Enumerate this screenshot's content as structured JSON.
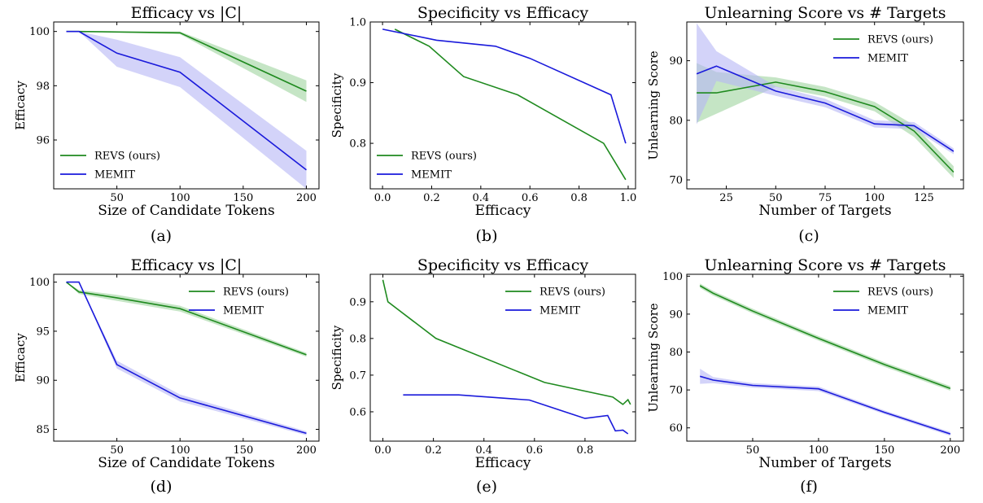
{
  "colors": {
    "revs": "#1f8a1f",
    "memit": "#1a1adb",
    "revs_band": "#9fd49f",
    "memit_band": "#b6b6f5"
  },
  "chart_data": [
    {
      "panel": "(a)",
      "type": "line",
      "title": "Efficacy vs |C|",
      "xlabel": "Size of Candidate Tokens",
      "ylabel": "Efficacy",
      "xlim": [
        0,
        210
      ],
      "ylim": [
        94.2,
        100.35
      ],
      "xticks": [
        50,
        100,
        150,
        200
      ],
      "yticks": [
        96,
        98,
        100
      ],
      "legend_loc": "lower-left",
      "series": [
        {
          "name": "REVS (ours)",
          "color": "#1f8a1f",
          "x": [
            10,
            20,
            100,
            200
          ],
          "y": [
            100,
            100,
            99.95,
            97.8
          ],
          "err": [
            0,
            0,
            0.05,
            0.4
          ]
        },
        {
          "name": "MEMIT",
          "color": "#1a1adb",
          "x": [
            10,
            20,
            50,
            100,
            200
          ],
          "y": [
            100,
            100,
            99.2,
            98.5,
            94.9
          ],
          "err": [
            0,
            0,
            0.5,
            0.55,
            0.7
          ]
        }
      ]
    },
    {
      "panel": "(b)",
      "type": "line",
      "title": "Specificity vs Efficacy",
      "xlabel": "Efficacy",
      "ylabel": "Specificity",
      "xlim": [
        -0.05,
        1.03
      ],
      "ylim": [
        0.725,
        1.0
      ],
      "xticks": [
        0.0,
        0.2,
        0.4,
        0.6,
        0.8,
        1.0
      ],
      "yticks": [
        0.8,
        0.9,
        1.0
      ],
      "legend_loc": "lower-left",
      "series": [
        {
          "name": "REVS (ours)",
          "color": "#1f8a1f",
          "x": [
            0.05,
            0.19,
            0.33,
            0.55,
            0.9,
            0.99
          ],
          "y": [
            0.988,
            0.96,
            0.91,
            0.88,
            0.8,
            0.74
          ]
        },
        {
          "name": "MEMIT",
          "color": "#1a1adb",
          "x": [
            0.0,
            0.22,
            0.46,
            0.6,
            0.93,
            0.99
          ],
          "y": [
            0.988,
            0.97,
            0.96,
            0.94,
            0.88,
            0.8
          ]
        }
      ]
    },
    {
      "panel": "(c)",
      "type": "line",
      "title": "Unlearning Score vs # Targets",
      "xlabel": "Number of Targets",
      "ylabel": "Unlearning Score",
      "xlim": [
        5,
        145
      ],
      "ylim": [
        68.5,
        96.5
      ],
      "xticks": [
        25,
        50,
        75,
        100,
        125
      ],
      "yticks": [
        70,
        80,
        90
      ],
      "legend_loc": "upper-right",
      "series": [
        {
          "name": "REVS (ours)",
          "color": "#1f8a1f",
          "x": [
            10,
            20,
            50,
            75,
            100,
            120,
            140
          ],
          "y": [
            84.6,
            84.6,
            86.4,
            84.8,
            82.3,
            78.2,
            71.3
          ],
          "err": [
            5,
            3.5,
            0.8,
            0.8,
            0.8,
            1,
            1
          ]
        },
        {
          "name": "MEMIT",
          "color": "#1a1adb",
          "x": [
            10,
            20,
            50,
            75,
            100,
            120,
            140
          ],
          "y": [
            87.8,
            89.1,
            84.9,
            82.9,
            79.4,
            79.1,
            74.8
          ],
          "err": [
            8.5,
            2.5,
            0.8,
            0.7,
            0.6,
            0.6,
            0.5
          ]
        }
      ]
    },
    {
      "panel": "(d)",
      "type": "line",
      "title": "Efficacy vs |C|",
      "xlabel": "Size of Candidate Tokens",
      "ylabel": "Efficacy",
      "xlim": [
        0,
        210
      ],
      "ylim": [
        83.8,
        100.8
      ],
      "xticks": [
        50,
        100,
        150,
        200
      ],
      "yticks": [
        85,
        90,
        95,
        100
      ],
      "legend_loc": "upper-right",
      "series": [
        {
          "name": "REVS (ours)",
          "color": "#1f8a1f",
          "x": [
            10,
            20,
            50,
            100,
            200
          ],
          "y": [
            100,
            99,
            98.4,
            97.3,
            92.6
          ],
          "err": [
            0,
            0.2,
            0.3,
            0.3,
            0.2
          ]
        },
        {
          "name": "MEMIT",
          "color": "#1a1adb",
          "x": [
            10,
            20,
            50,
            100,
            200
          ],
          "y": [
            100,
            100,
            91.6,
            88.2,
            84.6
          ],
          "err": [
            0,
            0,
            0.4,
            0.35,
            0.2
          ]
        }
      ]
    },
    {
      "panel": "(e)",
      "type": "line",
      "title": "Specificity vs Efficacy",
      "xlabel": "Efficacy",
      "ylabel": "Specificity",
      "xlim": [
        -0.05,
        1.0
      ],
      "ylim": [
        0.52,
        0.975
      ],
      "xticks": [
        0.0,
        0.2,
        0.4,
        0.6,
        0.8
      ],
      "yticks": [
        0.6,
        0.7,
        0.8,
        0.9
      ],
      "legend_loc": "upper-right",
      "series": [
        {
          "name": "REVS (ours)",
          "color": "#1f8a1f",
          "x": [
            0.0,
            0.02,
            0.21,
            0.64,
            0.91,
            0.95,
            0.97,
            0.98
          ],
          "y": [
            0.96,
            0.9,
            0.8,
            0.68,
            0.64,
            0.62,
            0.633,
            0.62
          ]
        },
        {
          "name": "MEMIT",
          "color": "#1a1adb",
          "x": [
            0.08,
            0.3,
            0.58,
            0.8,
            0.89,
            0.92,
            0.95,
            0.97
          ],
          "y": [
            0.646,
            0.646,
            0.632,
            0.582,
            0.59,
            0.548,
            0.55,
            0.54
          ]
        }
      ]
    },
    {
      "panel": "(f)",
      "type": "line",
      "title": "Unlearning Score vs # Targets",
      "xlabel": "Number of Targets",
      "ylabel": "Unlearning Score",
      "xlim": [
        0,
        210
      ],
      "ylim": [
        56.5,
        100.5
      ],
      "xticks": [
        50,
        100,
        150,
        200
      ],
      "yticks": [
        60,
        70,
        80,
        90,
        100
      ],
      "legend_loc": "upper-right",
      "series": [
        {
          "name": "REVS (ours)",
          "color": "#1f8a1f",
          "x": [
            10,
            20,
            50,
            100,
            150,
            200
          ],
          "y": [
            97.5,
            95.5,
            90.8,
            83.6,
            76.7,
            70.4
          ],
          "err": [
            0.6,
            0.6,
            0.6,
            0.6,
            0.6,
            0.6
          ]
        },
        {
          "name": "MEMIT",
          "color": "#1a1adb",
          "x": [
            10,
            20,
            50,
            100,
            150,
            200
          ],
          "y": [
            73.6,
            72.6,
            71.2,
            70.3,
            64.1,
            58.4
          ],
          "err": [
            2,
            0.8,
            0.6,
            0.6,
            0.5,
            0.5
          ]
        }
      ]
    }
  ]
}
